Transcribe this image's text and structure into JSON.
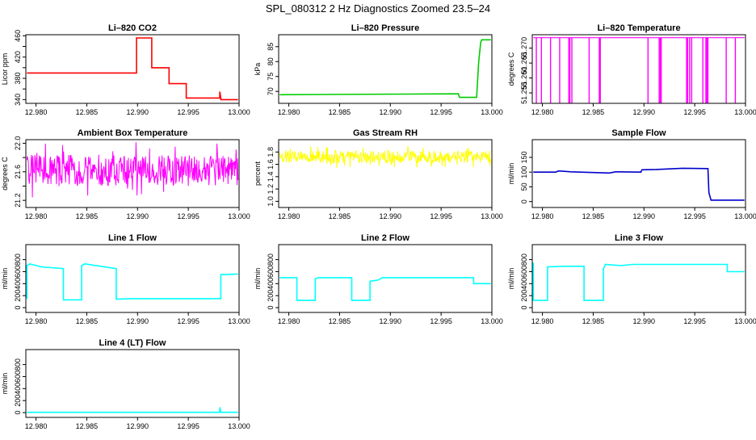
{
  "page_title": "SPL_080312  2 Hz Diagnostics Zoomed 23.5–24",
  "chart_data": [
    {
      "type": "line",
      "title": "Li–820 CO2",
      "ylabel": "Licor ppm",
      "xlim": [
        12.979,
        13.0
      ],
      "ylim": [
        333,
        462
      ],
      "xticks": [
        12.98,
        12.985,
        12.99,
        12.995,
        13.0
      ],
      "xtick_labels": [
        "12.980",
        "12.985",
        "12.990",
        "12.995",
        "13.000"
      ],
      "yticks": [
        340,
        360,
        380,
        400,
        420,
        440,
        460
      ],
      "ytick_labels": [
        "340",
        "",
        "380",
        "",
        "420",
        "",
        "460"
      ],
      "series": [
        {
          "color": "#ff0000",
          "style": "step",
          "x": [
            12.9791,
            12.9899,
            12.9899,
            12.9914,
            12.9914,
            12.9931,
            12.9931,
            12.9948,
            12.9948,
            12.9981,
            12.9981,
            12.9982,
            12.9982,
            12.9999
          ],
          "y": [
            390,
            390,
            456,
            456,
            400,
            400,
            370,
            370,
            343,
            343,
            355,
            343,
            340,
            340
          ]
        }
      ]
    },
    {
      "type": "line",
      "title": "Li–820 Pressure",
      "ylabel": "kPa",
      "xlim": [
        12.979,
        13.0
      ],
      "ylim": [
        66,
        89
      ],
      "xticks": [
        12.98,
        12.985,
        12.99,
        12.995,
        13.0
      ],
      "xtick_labels": [
        "12.980",
        "12.985",
        "12.990",
        "12.995",
        "13.000"
      ],
      "yticks": [
        70,
        75,
        80,
        85
      ],
      "ytick_labels": [
        "70",
        "75",
        "80",
        "85"
      ],
      "series": [
        {
          "color": "#00cc00",
          "style": "line",
          "x": [
            12.9791,
            12.9967,
            12.9968,
            12.9985,
            12.9987,
            12.9989,
            12.999,
            12.9999
          ],
          "y": [
            68.9,
            69.2,
            68.0,
            68.0,
            80,
            86.5,
            87.3,
            87.3
          ]
        }
      ]
    },
    {
      "type": "line",
      "title": "Li–820 Temperature",
      "ylabel": "degrees C",
      "xlim": [
        12.979,
        13.0
      ],
      "ylim": [
        51.2515,
        51.2745
      ],
      "xticks": [
        12.98,
        12.985,
        12.99,
        12.995,
        13.0
      ],
      "xtick_labels": [
        "12.980",
        "12.985",
        "12.990",
        "12.995",
        "13.000"
      ],
      "yticks": [
        51.255,
        51.26,
        51.265,
        51.27
      ],
      "ytick_labels": [
        "51.255",
        "51.260",
        "51.265",
        "51.270"
      ],
      "series": [
        {
          "color": "#ff00ff",
          "style": "spikes",
          "base": 51.2735,
          "spike_to": 51.2515,
          "x": [
            12.9794,
            12.9799,
            12.9808,
            12.9817,
            12.9826,
            12.9827,
            12.9829,
            12.9846,
            12.9856,
            12.9857,
            12.9904,
            12.9915,
            12.9916,
            12.9917,
            12.9942,
            12.9943,
            12.9945,
            12.9947,
            12.9958,
            12.9961,
            12.9962,
            12.9963,
            12.9981,
            12.999
          ]
        }
      ]
    },
    {
      "type": "line",
      "title": "Ambient Box Temperature",
      "ylabel": "degrees C",
      "xlim": [
        12.979,
        13.0
      ],
      "ylim": [
        21.1,
        22.05
      ],
      "xticks": [
        12.98,
        12.985,
        12.99,
        12.995,
        13.0
      ],
      "xtick_labels": [
        "12.980",
        "12.985",
        "12.990",
        "12.995",
        "13.000"
      ],
      "yticks": [
        21.2,
        21.4,
        21.6,
        21.8,
        22.0
      ],
      "ytick_labels": [
        "21.2",
        "",
        "21.6",
        "",
        "22.0"
      ],
      "series": [
        {
          "color": "#ff00ff",
          "style": "noise",
          "x_range": [
            12.9791,
            12.9999
          ],
          "center": 21.62,
          "amplitude": 0.4
        }
      ]
    },
    {
      "type": "line",
      "title": "Gas Stream RH",
      "ylabel": "percent",
      "xlim": [
        12.979,
        13.0
      ],
      "ylim": [
        0.9,
        2.0
      ],
      "xticks": [
        12.98,
        12.985,
        12.99,
        12.995,
        13.0
      ],
      "xtick_labels": [
        "12.980",
        "12.985",
        "12.990",
        "12.995",
        "13.000"
      ],
      "yticks": [
        1.0,
        1.2,
        1.4,
        1.6,
        1.8
      ],
      "ytick_labels": [
        "1.0",
        "1.2",
        "1.4",
        "1.6",
        "1.8"
      ],
      "series": [
        {
          "color": "#ffff00",
          "style": "noise",
          "x_range": [
            12.9791,
            12.9999
          ],
          "center": 1.72,
          "amplitude": 0.18
        }
      ]
    },
    {
      "type": "line",
      "title": "Sample Flow",
      "ylabel": "ml/min",
      "xlim": [
        12.979,
        13.0
      ],
      "ylim": [
        -20,
        210
      ],
      "xticks": [
        12.98,
        12.985,
        12.99,
        12.995,
        13.0
      ],
      "xtick_labels": [
        "12.980",
        "12.985",
        "12.990",
        "12.995",
        "13.000"
      ],
      "yticks": [
        0,
        50,
        100,
        150
      ],
      "ytick_labels": [
        "0",
        "50",
        "100",
        "150"
      ],
      "series": [
        {
          "color": "#0000cc",
          "style": "line",
          "x": [
            12.9791,
            12.9813,
            12.9816,
            12.9828,
            12.9866,
            12.9872,
            12.9897,
            12.9898,
            12.9912,
            12.9938,
            12.9963,
            12.9964,
            12.9966,
            12.9999
          ],
          "y": [
            100,
            100,
            104,
            101,
            97,
            101,
            100,
            108,
            109,
            113,
            112,
            30,
            5,
            5
          ]
        }
      ]
    },
    {
      "type": "line",
      "title": "Line 1 Flow",
      "ylabel": "ml/min",
      "xlim": [
        12.979,
        13.0
      ],
      "ylim": [
        -80,
        1050
      ],
      "xticks": [
        12.98,
        12.985,
        12.99,
        12.995,
        13.0
      ],
      "xtick_labels": [
        "12.980",
        "12.985",
        "12.990",
        "12.995",
        "13.000"
      ],
      "yticks": [
        0,
        200,
        400,
        600,
        800
      ],
      "ytick_labels": [
        "0",
        "200",
        "400",
        "600",
        "800"
      ],
      "series": [
        {
          "color": "#00ffff",
          "style": "step",
          "x": [
            12.9791,
            12.9791,
            12.9794,
            12.9805,
            12.9827,
            12.9827,
            12.9845,
            12.9845,
            12.9848,
            12.9879,
            12.9879,
            12.9895,
            12.9982,
            12.9982,
            12.9999
          ],
          "y": [
            150,
            700,
            730,
            680,
            650,
            130,
            130,
            700,
            730,
            650,
            140,
            150,
            150,
            550,
            560
          ]
        }
      ]
    },
    {
      "type": "line",
      "title": "Line 2 Flow",
      "ylabel": "ml/min",
      "xlim": [
        12.979,
        13.0
      ],
      "ylim": [
        -80,
        1050
      ],
      "xticks": [
        12.98,
        12.985,
        12.99,
        12.995,
        13.0
      ],
      "xtick_labels": [
        "12.980",
        "12.985",
        "12.990",
        "12.995",
        "13.000"
      ],
      "yticks": [
        0,
        200,
        400,
        600,
        800
      ],
      "ytick_labels": [
        "0",
        "200",
        "400",
        "600",
        "800"
      ],
      "series": [
        {
          "color": "#00ffff",
          "style": "step",
          "x": [
            12.9791,
            12.9808,
            12.9808,
            12.9826,
            12.9826,
            12.9829,
            12.9862,
            12.9862,
            12.988,
            12.988,
            12.9888,
            12.9892,
            12.9982,
            12.9982,
            12.9999
          ],
          "y": [
            500,
            500,
            120,
            120,
            480,
            500,
            500,
            120,
            120,
            440,
            460,
            500,
            500,
            400,
            400
          ]
        }
      ]
    },
    {
      "type": "line",
      "title": "Line 3 Flow",
      "ylabel": "ml/min",
      "xlim": [
        12.979,
        13.0
      ],
      "ylim": [
        -80,
        1050
      ],
      "xticks": [
        12.98,
        12.985,
        12.99,
        12.995,
        13.0
      ],
      "xtick_labels": [
        "12.980",
        "12.985",
        "12.990",
        "12.995",
        "13.000"
      ],
      "yticks": [
        0,
        200,
        400,
        600,
        800
      ],
      "ytick_labels": [
        "0",
        "200",
        "400",
        "600",
        "800"
      ],
      "series": [
        {
          "color": "#00ffff",
          "style": "step",
          "x": [
            12.9791,
            12.9791,
            12.9792,
            12.9805,
            12.9805,
            12.9824,
            12.9841,
            12.9841,
            12.986,
            12.986,
            12.9862,
            12.9877,
            12.9889,
            12.9982,
            12.9982,
            12.9999
          ],
          "y": [
            750,
            120,
            120,
            120,
            680,
            690,
            690,
            120,
            120,
            640,
            720,
            700,
            720,
            720,
            600,
            600
          ]
        }
      ]
    },
    {
      "type": "line",
      "title": "Line 4 (LT) Flow",
      "ylabel": "ml/min",
      "xlim": [
        12.979,
        13.0
      ],
      "ylim": [
        -80,
        1050
      ],
      "xticks": [
        12.98,
        12.985,
        12.99,
        12.995,
        13.0
      ],
      "xtick_labels": [
        "12.980",
        "12.985",
        "12.990",
        "12.995",
        "13.000"
      ],
      "yticks": [
        0,
        200,
        400,
        600,
        800
      ],
      "ytick_labels": [
        "0",
        "200",
        "400",
        "600",
        "800"
      ],
      "series": [
        {
          "color": "#00ffff",
          "style": "line",
          "x": [
            12.9791,
            12.9981,
            12.9981,
            12.9982,
            12.9982,
            12.9999
          ],
          "y": [
            5,
            5,
            90,
            5,
            5,
            5
          ]
        }
      ]
    }
  ]
}
